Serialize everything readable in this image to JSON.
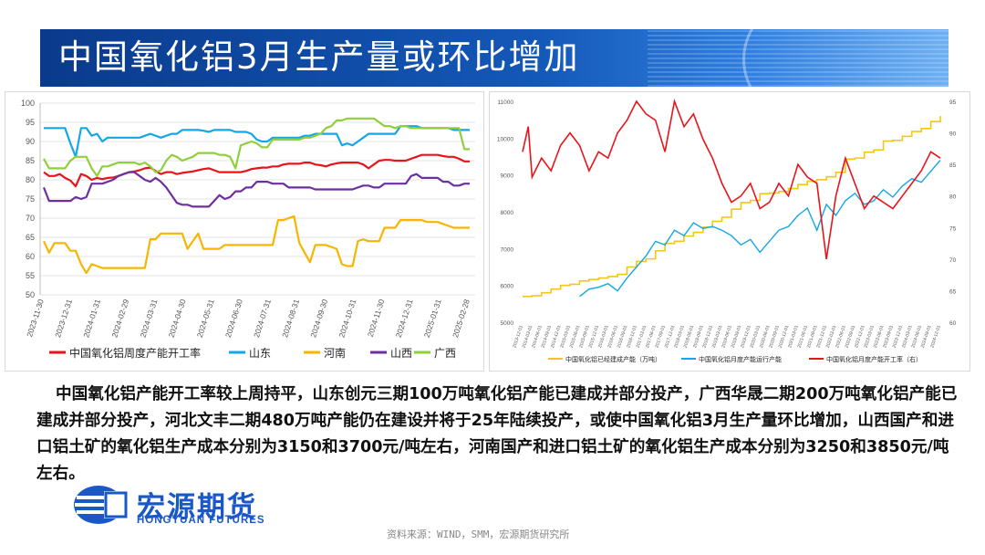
{
  "banner": {
    "title": "中国氧化铝3月生产量或环比增加"
  },
  "colors": {
    "red": "#e8141b",
    "blue": "#13a7e8",
    "orange": "#f7b500",
    "purple": "#6d2fa0",
    "green": "#8fcf3c",
    "yellow": "#f5c518",
    "navy": "#0a3a8c",
    "brand": "#1a57c7"
  },
  "chart_data": [
    {
      "type": "line",
      "ylim": [
        50,
        100
      ],
      "yticks": [
        50,
        55,
        60,
        65,
        70,
        75,
        80,
        85,
        90,
        95,
        100
      ],
      "xticks": [
        "2023-11-30",
        "2023-12-31",
        "2024-01-31",
        "2024-02-29",
        "2024-03-31",
        "2024-04-30",
        "2024-05-31",
        "2024-06-30",
        "2024-07-31",
        "2024-08-31",
        "2024-09-30",
        "2024-10-31",
        "2024-11-30",
        "2024-12-31",
        "2025-01-31",
        "2025-02-28"
      ],
      "grid": true,
      "legend": "bottom",
      "series": [
        {
          "name": "中国氧化铝周度产能开工率",
          "color": "#e8141b",
          "values": [
            82,
            81,
            81,
            81.5,
            80.5,
            79.8,
            78.3,
            81.5,
            81,
            80,
            80.5,
            80.2,
            80.5,
            80.6,
            81,
            81.5,
            82,
            82.2,
            82.5,
            83,
            83.2,
            82.3,
            81.5,
            82,
            82,
            81.5,
            81.8,
            82,
            82.2,
            82.5,
            82.8,
            83,
            82.5,
            82,
            82,
            82,
            82,
            82,
            82.3,
            82.8,
            83,
            83.2,
            83.2,
            83.5,
            83.5,
            84,
            84.2,
            84.2,
            84.2,
            84.5,
            84.5,
            84,
            83.8,
            83.5,
            84,
            84.3,
            84.5,
            84.5,
            84.5,
            84.5,
            84,
            83,
            84,
            85,
            85.2,
            85.2,
            85,
            85,
            85,
            85.5,
            86,
            86.5,
            86.5,
            86.5,
            86.5,
            86.2,
            86,
            86,
            85.5,
            84.8,
            84.8
          ]
        },
        {
          "name": "山东",
          "color": "#13a7e8",
          "values": [
            93.5,
            93.5,
            93.5,
            93.5,
            93.5,
            89.5,
            86,
            93.5,
            93.5,
            91.5,
            92,
            90,
            91,
            91,
            91,
            91,
            91,
            91,
            91,
            91.5,
            92,
            91.5,
            91,
            91.5,
            92,
            92,
            93,
            93,
            93,
            93,
            92.8,
            92.5,
            93,
            93,
            93,
            93,
            92.5,
            92.5,
            92.5,
            92,
            90.5,
            90,
            90,
            91,
            91,
            91,
            91,
            91,
            91,
            91.5,
            91.5,
            92,
            92,
            92,
            92,
            92,
            89,
            89.5,
            89,
            90,
            91,
            92,
            92,
            92,
            92,
            92,
            92,
            94,
            94,
            94,
            94,
            93.5,
            93.5,
            93.5,
            93.5,
            93.5,
            93.5,
            93,
            93,
            93,
            93
          ]
        },
        {
          "name": "河南",
          "color": "#f7b500",
          "values": [
            64,
            61,
            63.5,
            63.5,
            63.5,
            61.5,
            61.5,
            58,
            55.7,
            58,
            57.5,
            57,
            57,
            57,
            57,
            57,
            57,
            57,
            57,
            57,
            64.5,
            64.5,
            66,
            66,
            66,
            66,
            66,
            62,
            64,
            66,
            62,
            62,
            62,
            62,
            63,
            63,
            63,
            63,
            63,
            63,
            63,
            63,
            63,
            63,
            69.5,
            69.5,
            70,
            70.5,
            63.5,
            61,
            58.5,
            63,
            63,
            63,
            62.5,
            62,
            58,
            57.5,
            57.5,
            64,
            64.5,
            64,
            64,
            64,
            67.5,
            67.5,
            67.5,
            69.5,
            69.5,
            69.5,
            69.5,
            69.5,
            69,
            69,
            69,
            68.5,
            68,
            67.5,
            67.5,
            67.5,
            67.5
          ]
        },
        {
          "name": "山西",
          "color": "#6d2fa0",
          "values": [
            78,
            74.5,
            74.5,
            74.5,
            74.5,
            74.5,
            75.5,
            75,
            75.5,
            79,
            79,
            79,
            79.5,
            80,
            81,
            81.5,
            82,
            82,
            81,
            80,
            79.5,
            80.5,
            79.5,
            78,
            76,
            74,
            73.5,
            73.5,
            73,
            73,
            73,
            73,
            74.5,
            76,
            75,
            75.5,
            77,
            77,
            78,
            78,
            79.5,
            79.5,
            79.5,
            79,
            79,
            79,
            78,
            78,
            78,
            78,
            78,
            77.5,
            77.5,
            77.5,
            77.5,
            77.5,
            77.5,
            77.5,
            77.5,
            78,
            78.5,
            78.5,
            78,
            78,
            79,
            79,
            79,
            79,
            79,
            81,
            81.5,
            80.5,
            80.5,
            80.5,
            80.5,
            79.5,
            79.5,
            78.5,
            78.5,
            79,
            79
          ]
        },
        {
          "name": "广西",
          "color": "#8fcf3c",
          "values": [
            85.5,
            83,
            83,
            83,
            83,
            85,
            86,
            86,
            86,
            83,
            81,
            83.5,
            83.5,
            84,
            84.5,
            84.5,
            84.5,
            84.5,
            84,
            84.5,
            83.5,
            82,
            82.5,
            85,
            86.5,
            86,
            85,
            85.5,
            86,
            87,
            87,
            87,
            87,
            86.5,
            86.5,
            86,
            83,
            89,
            89.5,
            90,
            89.5,
            88.5,
            88.5,
            90.5,
            90.5,
            90.5,
            90.5,
            90.5,
            90.5,
            91,
            91,
            91.5,
            92,
            93.5,
            94,
            95.5,
            95.5,
            96,
            96,
            96,
            96,
            96,
            96,
            95,
            94,
            94,
            93.5,
            94,
            94,
            93.5,
            93.5,
            93.5,
            93.5,
            93.5,
            93.5,
            93.5,
            93.5,
            93.5,
            93.5,
            88,
            88
          ]
        }
      ]
    },
    {
      "type": "line",
      "y_left": {
        "ticks": [
          5000,
          6000,
          7000,
          8000,
          9000,
          10000,
          11000
        ]
      },
      "y_right": {
        "ticks": [
          60,
          65,
          70,
          75,
          80,
          85,
          90,
          95
        ]
      },
      "xticks": [
        "2013-12-01",
        "2014-03-01",
        "2014-06-01",
        "2014-09-01",
        "2014-12-01",
        "2015-03-01",
        "2015-06-01",
        "2015-09-01",
        "2015-12-01",
        "2016-03-01",
        "2016-06-01",
        "2016-09-01",
        "2016-12-01",
        "2017-03-01",
        "2017-06-01",
        "2017-09-01",
        "2017-12-01",
        "2018-03-01",
        "2018-06-01",
        "2018-09-01",
        "2018-12-01",
        "2019-03-01",
        "2019-06-01",
        "2019-09-01",
        "2019-12-01",
        "2020-03-01",
        "2020-06-01",
        "2020-09-01",
        "2020-12-01",
        "2021-03-01",
        "2021-06-01",
        "2021-09-01",
        "2021-12-01",
        "2022-03-01",
        "2022-06-01",
        "2022-09-01",
        "2022-12-01",
        "2023-03-01",
        "2023-06-01",
        "2023-09-01",
        "2023-12-01",
        "2024-03-01",
        "2024-06-01",
        "2024-09-01",
        "2024-12-01"
      ],
      "grid": false,
      "legend": "bottom",
      "series": [
        {
          "name": "中国氧化铝已经建成产能（万吨）",
          "axis": "left",
          "color": "#f5c518",
          "values": [
            5700,
            5720,
            5800,
            5900,
            6000,
            6030,
            6120,
            6160,
            6200,
            6240,
            6300,
            6500,
            6650,
            6720,
            6940,
            7140,
            7200,
            7340,
            7440,
            7580,
            7740,
            7850,
            8070,
            8250,
            8310,
            8490,
            8510,
            8550,
            8630,
            8740,
            8830,
            8870,
            8950,
            9070,
            9430,
            9460,
            9620,
            9680,
            9920,
            9940,
            10050,
            10180,
            10260,
            10450,
            10600
          ]
        },
        {
          "name": "中国氧化铝月度产能运行产能",
          "axis": "left",
          "color": "#13a7e8",
          "values": null,
          "note": "sparse; starts 2014-06"
        },
        {
          "name": "中国氧化铝月度产能开工率（右）",
          "axis": "right",
          "color": "#e8141b",
          "values": null
        }
      ]
    }
  ],
  "left_chart": {
    "yticks_label": [
      "50",
      "55",
      "60",
      "65",
      "70",
      "75",
      "80",
      "85",
      "90",
      "95",
      "100"
    ],
    "legend": [
      {
        "label": "中国氧化铝周度产能开工率",
        "color": "#e8141b"
      },
      {
        "label": "山东",
        "color": "#13a7e8"
      },
      {
        "label": "河南",
        "color": "#f7b500"
      },
      {
        "label": "山西",
        "color": "#6d2fa0"
      },
      {
        "label": "广西",
        "color": "#8fcf3c"
      }
    ]
  },
  "right_chart": {
    "legend": [
      {
        "label": "中国氧化铝已经建成产能（万吨）",
        "color": "#f5c518"
      },
      {
        "label": "中国氧化铝月度产能运行产能",
        "color": "#13a7e8"
      },
      {
        "label": "中国氧化铝月度产能开工率（右）",
        "color": "#e8141b"
      }
    ]
  },
  "body": {
    "paragraph": "中国氧化铝产能开工率较上周持平，山东创元三期100万吨氧化铝产能已建成并部分投产，广西华晟二期200万吨氧化铝产能已建成并部分投产，河北文丰二期480万吨产能仍在建设并将于25年陆续投产，或使中国氧化铝3月生产量环比增加，山西国产和进口铝土矿的氧化铝生产成本分别为3150和3700元/吨左右，河南国产和进口铝土矿的氧化铝生产成本分别为3250和3850元/吨左右。"
  },
  "logo": {
    "cn": "宏源期货",
    "en": "HONGYUAN FUTURES"
  },
  "footer": {
    "source": "资料来源：WIND，SMM，宏源期货研究所"
  }
}
